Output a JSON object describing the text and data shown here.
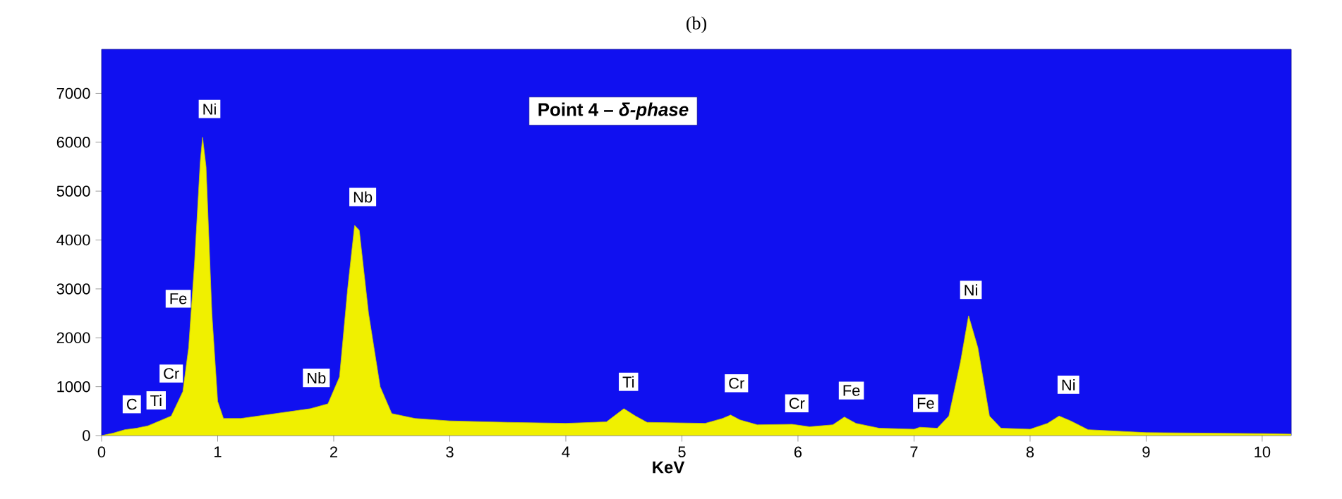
{
  "chart_data": {
    "type": "area",
    "title": "(b)",
    "xlabel": "KeV",
    "color": "#f0f000",
    "x": [
      0,
      0.1,
      0.2,
      0.3,
      0.4,
      0.5,
      0.6,
      0.7,
      0.75,
      0.8,
      0.85,
      0.87,
      0.9,
      0.95,
      1.0,
      1.05,
      1.2,
      1.5,
      1.8,
      1.95,
      2.05,
      2.12,
      2.18,
      2.22,
      2.3,
      2.4,
      2.5,
      2.7,
      3.0,
      3.5,
      4.0,
      4.35,
      4.5,
      4.6,
      4.7,
      5.2,
      5.35,
      5.42,
      5.5,
      5.65,
      5.95,
      6.1,
      6.3,
      6.4,
      6.5,
      6.7,
      7.0,
      7.05,
      7.2,
      7.3,
      7.4,
      7.47,
      7.55,
      7.65,
      7.75,
      8.0,
      8.15,
      8.25,
      8.35,
      8.5,
      9.0,
      10.0,
      10.25
    ],
    "values": [
      0,
      50,
      120,
      150,
      200,
      300,
      400,
      900,
      1800,
      3500,
      5600,
      6100,
      5500,
      2500,
      700,
      350,
      350,
      450,
      550,
      650,
      1200,
      3000,
      4300,
      4200,
      2500,
      1000,
      450,
      350,
      300,
      270,
      250,
      280,
      550,
      400,
      270,
      250,
      350,
      420,
      320,
      220,
      230,
      180,
      220,
      380,
      250,
      150,
      130,
      170,
      150,
      400,
      1500,
      2450,
      1800,
      400,
      150,
      130,
      250,
      400,
      300,
      120,
      60,
      40,
      30
    ],
    "xlim": [
      0,
      10.25
    ],
    "ylim": [
      0,
      7900
    ],
    "xticks": [
      0,
      1,
      2,
      3,
      4,
      5,
      6,
      7,
      8,
      9,
      10
    ],
    "yticks": [
      0,
      1000,
      2000,
      3000,
      4000,
      5000,
      6000,
      7000
    ],
    "grid": false,
    "annotations": [
      "Point 4 – *δ-phase*",
      {
        "text": "C",
        "x": 0.26,
        "y": 640
      },
      {
        "text": "Ti",
        "x": 0.47,
        "y": 720
      },
      {
        "text": "Cr",
        "x": 0.6,
        "y": 1270
      },
      {
        "text": "Fe",
        "x": 0.66,
        "y": 2800
      },
      {
        "text": "Ni",
        "x": 0.93,
        "y": 6680
      },
      {
        "text": "Nb",
        "x": 1.85,
        "y": 1180
      },
      {
        "text": "Nb",
        "x": 2.25,
        "y": 4880
      },
      {
        "text": "Ti",
        "x": 4.54,
        "y": 1100
      },
      {
        "text": "Cr",
        "x": 5.47,
        "y": 1070
      },
      {
        "text": "Cr",
        "x": 5.99,
        "y": 660
      },
      {
        "text": "Fe",
        "x": 6.46,
        "y": 920
      },
      {
        "text": "Fe",
        "x": 7.1,
        "y": 660
      },
      {
        "text": "Ni",
        "x": 7.49,
        "y": 2980
      },
      {
        "text": "Ni",
        "x": 8.33,
        "y": 1040
      }
    ]
  }
}
